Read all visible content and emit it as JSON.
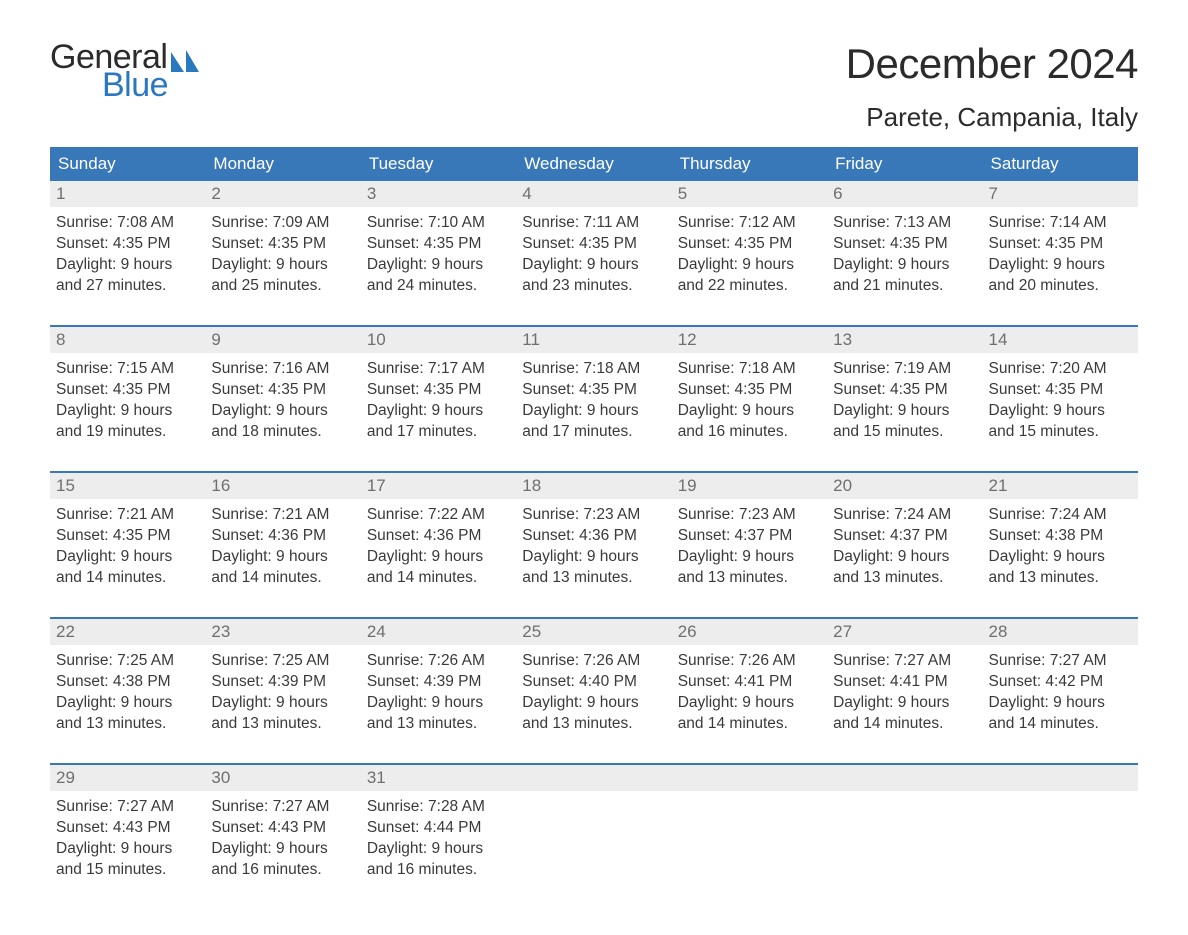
{
  "logo": {
    "text1": "General",
    "text2": "Blue",
    "sail_color": "#2a78c0"
  },
  "title": "December 2024",
  "subtitle": "Parete, Campania, Italy",
  "colors": {
    "header_bg": "#3878b8",
    "header_text": "#ffffff",
    "week_rule": "#3878b8",
    "daynum_bg": "#ededed",
    "daynum_text": "#6f6f6f",
    "body_text": "#3a3a3a",
    "page_bg": "#ffffff",
    "logo_blue": "#2a78c0"
  },
  "typography": {
    "title_fontsize": 42,
    "subtitle_fontsize": 26,
    "header_fontsize": 17,
    "daynum_fontsize": 17,
    "body_fontsize": 15.5,
    "font_family": "Arial"
  },
  "day_names": [
    "Sunday",
    "Monday",
    "Tuesday",
    "Wednesday",
    "Thursday",
    "Friday",
    "Saturday"
  ],
  "weeks": [
    [
      {
        "n": "1",
        "sunrise": "7:08 AM",
        "sunset": "4:35 PM",
        "dl1": "Daylight: 9 hours",
        "dl2": "and 27 minutes."
      },
      {
        "n": "2",
        "sunrise": "7:09 AM",
        "sunset": "4:35 PM",
        "dl1": "Daylight: 9 hours",
        "dl2": "and 25 minutes."
      },
      {
        "n": "3",
        "sunrise": "7:10 AM",
        "sunset": "4:35 PM",
        "dl1": "Daylight: 9 hours",
        "dl2": "and 24 minutes."
      },
      {
        "n": "4",
        "sunrise": "7:11 AM",
        "sunset": "4:35 PM",
        "dl1": "Daylight: 9 hours",
        "dl2": "and 23 minutes."
      },
      {
        "n": "5",
        "sunrise": "7:12 AM",
        "sunset": "4:35 PM",
        "dl1": "Daylight: 9 hours",
        "dl2": "and 22 minutes."
      },
      {
        "n": "6",
        "sunrise": "7:13 AM",
        "sunset": "4:35 PM",
        "dl1": "Daylight: 9 hours",
        "dl2": "and 21 minutes."
      },
      {
        "n": "7",
        "sunrise": "7:14 AM",
        "sunset": "4:35 PM",
        "dl1": "Daylight: 9 hours",
        "dl2": "and 20 minutes."
      }
    ],
    [
      {
        "n": "8",
        "sunrise": "7:15 AM",
        "sunset": "4:35 PM",
        "dl1": "Daylight: 9 hours",
        "dl2": "and 19 minutes."
      },
      {
        "n": "9",
        "sunrise": "7:16 AM",
        "sunset": "4:35 PM",
        "dl1": "Daylight: 9 hours",
        "dl2": "and 18 minutes."
      },
      {
        "n": "10",
        "sunrise": "7:17 AM",
        "sunset": "4:35 PM",
        "dl1": "Daylight: 9 hours",
        "dl2": "and 17 minutes."
      },
      {
        "n": "11",
        "sunrise": "7:18 AM",
        "sunset": "4:35 PM",
        "dl1": "Daylight: 9 hours",
        "dl2": "and 17 minutes."
      },
      {
        "n": "12",
        "sunrise": "7:18 AM",
        "sunset": "4:35 PM",
        "dl1": "Daylight: 9 hours",
        "dl2": "and 16 minutes."
      },
      {
        "n": "13",
        "sunrise": "7:19 AM",
        "sunset": "4:35 PM",
        "dl1": "Daylight: 9 hours",
        "dl2": "and 15 minutes."
      },
      {
        "n": "14",
        "sunrise": "7:20 AM",
        "sunset": "4:35 PM",
        "dl1": "Daylight: 9 hours",
        "dl2": "and 15 minutes."
      }
    ],
    [
      {
        "n": "15",
        "sunrise": "7:21 AM",
        "sunset": "4:35 PM",
        "dl1": "Daylight: 9 hours",
        "dl2": "and 14 minutes."
      },
      {
        "n": "16",
        "sunrise": "7:21 AM",
        "sunset": "4:36 PM",
        "dl1": "Daylight: 9 hours",
        "dl2": "and 14 minutes."
      },
      {
        "n": "17",
        "sunrise": "7:22 AM",
        "sunset": "4:36 PM",
        "dl1": "Daylight: 9 hours",
        "dl2": "and 14 minutes."
      },
      {
        "n": "18",
        "sunrise": "7:23 AM",
        "sunset": "4:36 PM",
        "dl1": "Daylight: 9 hours",
        "dl2": "and 13 minutes."
      },
      {
        "n": "19",
        "sunrise": "7:23 AM",
        "sunset": "4:37 PM",
        "dl1": "Daylight: 9 hours",
        "dl2": "and 13 minutes."
      },
      {
        "n": "20",
        "sunrise": "7:24 AM",
        "sunset": "4:37 PM",
        "dl1": "Daylight: 9 hours",
        "dl2": "and 13 minutes."
      },
      {
        "n": "21",
        "sunrise": "7:24 AM",
        "sunset": "4:38 PM",
        "dl1": "Daylight: 9 hours",
        "dl2": "and 13 minutes."
      }
    ],
    [
      {
        "n": "22",
        "sunrise": "7:25 AM",
        "sunset": "4:38 PM",
        "dl1": "Daylight: 9 hours",
        "dl2": "and 13 minutes."
      },
      {
        "n": "23",
        "sunrise": "7:25 AM",
        "sunset": "4:39 PM",
        "dl1": "Daylight: 9 hours",
        "dl2": "and 13 minutes."
      },
      {
        "n": "24",
        "sunrise": "7:26 AM",
        "sunset": "4:39 PM",
        "dl1": "Daylight: 9 hours",
        "dl2": "and 13 minutes."
      },
      {
        "n": "25",
        "sunrise": "7:26 AM",
        "sunset": "4:40 PM",
        "dl1": "Daylight: 9 hours",
        "dl2": "and 13 minutes."
      },
      {
        "n": "26",
        "sunrise": "7:26 AM",
        "sunset": "4:41 PM",
        "dl1": "Daylight: 9 hours",
        "dl2": "and 14 minutes."
      },
      {
        "n": "27",
        "sunrise": "7:27 AM",
        "sunset": "4:41 PM",
        "dl1": "Daylight: 9 hours",
        "dl2": "and 14 minutes."
      },
      {
        "n": "28",
        "sunrise": "7:27 AM",
        "sunset": "4:42 PM",
        "dl1": "Daylight: 9 hours",
        "dl2": "and 14 minutes."
      }
    ],
    [
      {
        "n": "29",
        "sunrise": "7:27 AM",
        "sunset": "4:43 PM",
        "dl1": "Daylight: 9 hours",
        "dl2": "and 15 minutes."
      },
      {
        "n": "30",
        "sunrise": "7:27 AM",
        "sunset": "4:43 PM",
        "dl1": "Daylight: 9 hours",
        "dl2": "and 16 minutes."
      },
      {
        "n": "31",
        "sunrise": "7:28 AM",
        "sunset": "4:44 PM",
        "dl1": "Daylight: 9 hours",
        "dl2": "and 16 minutes."
      },
      {
        "empty": true
      },
      {
        "empty": true
      },
      {
        "empty": true
      },
      {
        "empty": true
      }
    ]
  ],
  "labels": {
    "sunrise_prefix": "Sunrise: ",
    "sunset_prefix": "Sunset: "
  }
}
